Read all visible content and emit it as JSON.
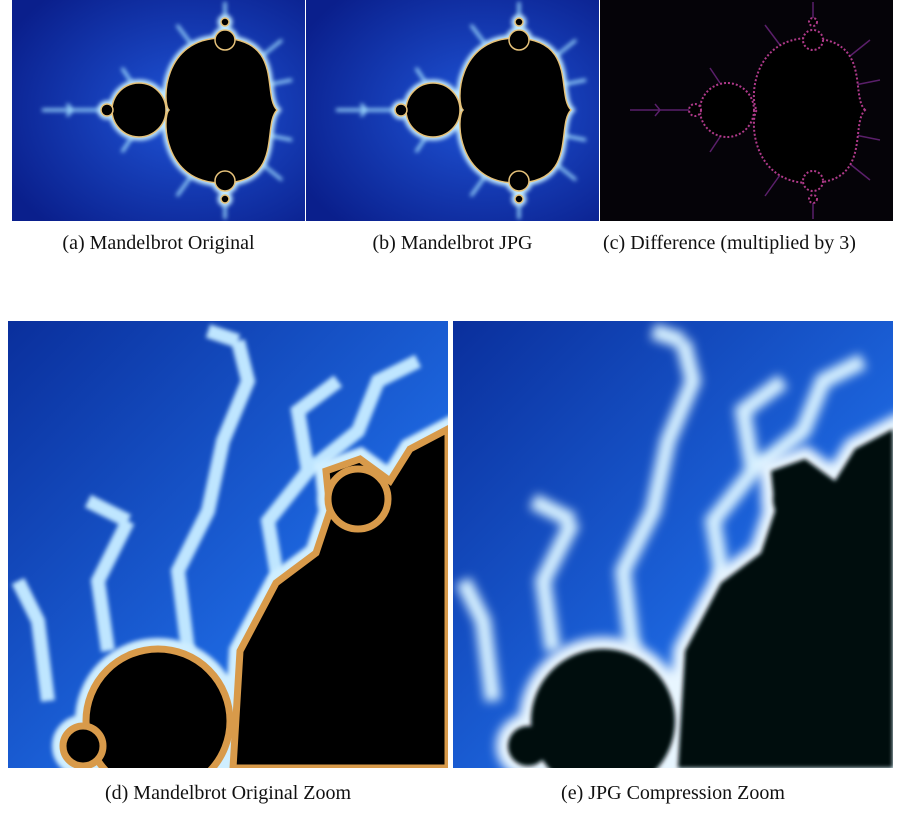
{
  "figure": {
    "panels": [
      {
        "caption": "(a) Mandelbrot Original"
      },
      {
        "caption": "(b) Mandelbrot JPG"
      },
      {
        "caption": "(c) Difference (multiplied by 3)"
      },
      {
        "caption": "(d) Mandelbrot Original Zoom"
      },
      {
        "caption": "(e) JPG Compression Zoom"
      }
    ]
  }
}
